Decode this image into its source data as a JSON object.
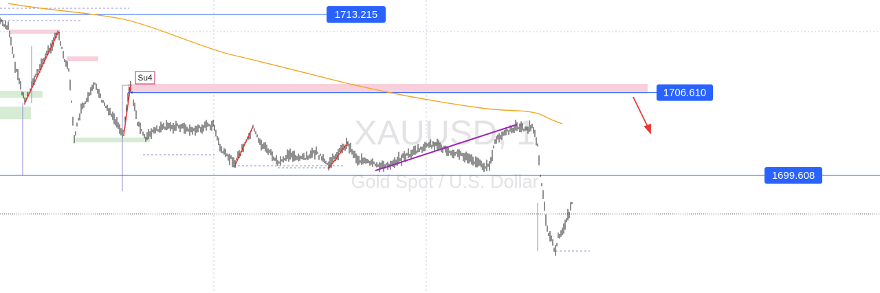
{
  "chart_data": {
    "type": "line",
    "symbol": "XAUUSD, 1",
    "description": "Gold Spot / U.S. Dollar",
    "price_levels": [
      {
        "label": "1713.215",
        "value": 1713.215
      },
      {
        "label": "1706.610",
        "value": 1706.61
      },
      {
        "label": "1699.608",
        "value": 1699.608
      }
    ],
    "annotations": [
      {
        "text": "Su4"
      }
    ],
    "ylim": [
      1690.0,
      1715.0
    ],
    "grid": true,
    "colors": {
      "price_line": "#2962ff",
      "tag_bg": "#2962ff",
      "moving_average": "#f5a623",
      "zone_pink": "#f8d0db",
      "zone_green": "#d7ecd4",
      "impulse_red": "#e53935",
      "trend_purple": "#9c27b0",
      "candles": "#222222",
      "measure": "#8c8ccc",
      "grid": "#c8d3e6"
    }
  }
}
